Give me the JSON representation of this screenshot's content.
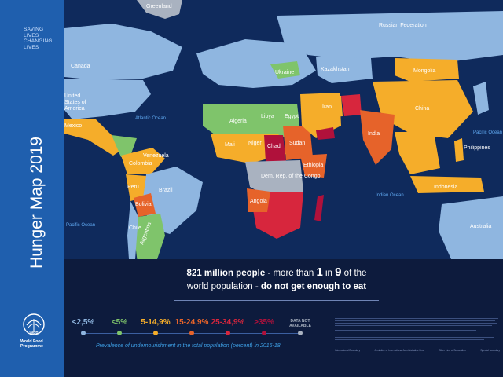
{
  "sidebar": {
    "tagline": "SAVING\nLIVES\nCHANGING\nLIVES",
    "title": "Hunger Map 2019",
    "org_name": "World Food\nProgramme",
    "org_logo": "WFP"
  },
  "map": {
    "countries": {
      "russia": "Russian Federation",
      "canada": "Canada",
      "usa": "United\nStates of\nAmerica",
      "mexico": "Mexico",
      "brazil": "Brazil",
      "bolivia": "Bolivia",
      "argentina": "Argentina",
      "peru": "Peru",
      "colombia": "Colombia",
      "venezuela": "Venezuela",
      "chile": "Chile",
      "algeria": "Algeria",
      "libya": "Libya",
      "egypt": "Egypt",
      "mali": "Mali",
      "niger": "Niger",
      "chad": "Chad",
      "sudan": "Sudan",
      "ethiopia": "Ethiopia",
      "drc": "Dem. Rep. of the Congo",
      "angola": "Angola",
      "kazakhstan": "Kazakhstan",
      "mongolia": "Mongolia",
      "china": "China",
      "india": "India",
      "iran": "Iran",
      "indonesia": "Indonesia",
      "australia": "Australia",
      "philippines": "Philippines",
      "ukraine": "Ukraine",
      "greenland": "Greenland"
    },
    "oceans": {
      "atlantic": "Atlantic Ocean",
      "pacific": "Pacific Ocean",
      "indian": "Indian Ocean",
      "pacific_east": "Pacific Ocean"
    },
    "colors": {
      "ocean": "#0f2a5c",
      "lt2_5": "#8fb6e0",
      "lt5": "#7fc46b",
      "c5_15": "#f5ad2a",
      "c15_25": "#e6632a",
      "c25_35": "#d7263d",
      "gt35": "#b0113b",
      "nodata": "#a9b2c0"
    }
  },
  "headline": {
    "line1_a": "821 million people",
    "line1_b": " - more than ",
    "line1_c": "1",
    "line1_d": " in ",
    "line1_e": "9",
    "line1_f": " of the",
    "line2_a": "world population",
    "line2_b": " - ",
    "line2_c": "do not get enough to eat"
  },
  "legend": {
    "items": [
      {
        "label": "<2,5%",
        "color": "#8fb6e0"
      },
      {
        "label": "<5%",
        "color": "#7fc46b"
      },
      {
        "label": "5-14,9%",
        "color": "#f5ad2a"
      },
      {
        "label": "15-24,9%",
        "color": "#e6632a"
      },
      {
        "label": "25-34,9%",
        "color": "#d7263d"
      },
      {
        "label": ">35%",
        "color": "#b0113b"
      },
      {
        "label": "DATA NOT AVAILABLE",
        "color": "#a9b2c0"
      }
    ],
    "caption": "Prevalence of undernourishment in the total population (percent) in 2016-18"
  },
  "footnote": {
    "boundaries": [
      "International Boundary",
      "Armistice or International Administrative Line",
      "Other Line of Separation",
      "Special boundary"
    ]
  }
}
